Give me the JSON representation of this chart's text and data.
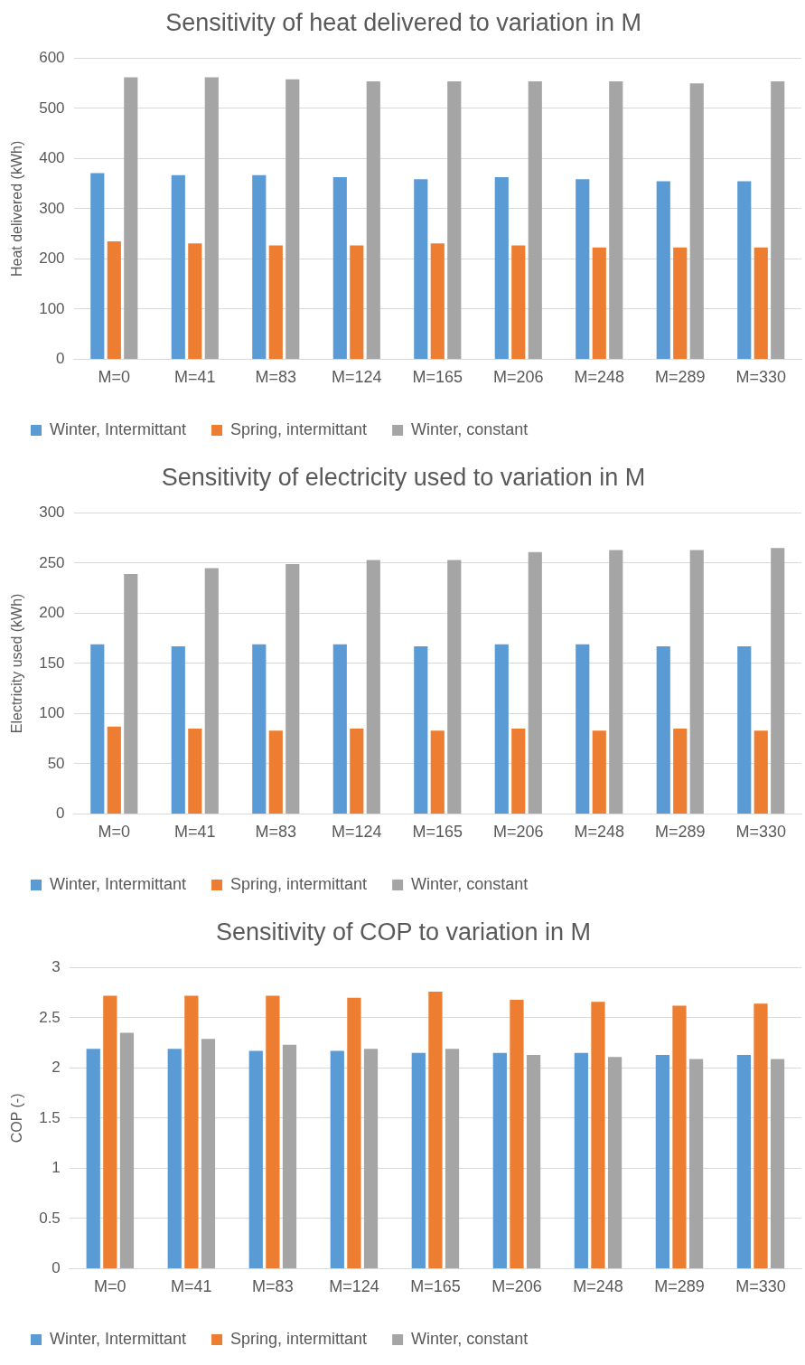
{
  "chart_data": [
    {
      "type": "bar",
      "title": "Sensitivity of heat delivered to variation in M",
      "ylabel": "Heat delivered (kWh)",
      "categories": [
        "M=0",
        "M=41",
        "M=83",
        "M=124",
        "M=165",
        "M=206",
        "M=248",
        "M=289",
        "M=330"
      ],
      "series": [
        {
          "name": "Winter, Intermittant",
          "color": "#5b9bd5",
          "values": [
            371,
            367,
            367,
            363,
            359,
            363,
            359,
            355,
            355
          ]
        },
        {
          "name": "Spring, intermittant",
          "color": "#ed7d31",
          "values": [
            235,
            231,
            227,
            227,
            231,
            227,
            223,
            223,
            223
          ]
        },
        {
          "name": "Winter, constant",
          "color": "#a5a5a5",
          "values": [
            562,
            562,
            558,
            554,
            554,
            554,
            554,
            550,
            554
          ]
        }
      ],
      "ylim": [
        0,
        600
      ],
      "yticks": [
        0,
        100,
        200,
        300,
        400,
        500,
        600
      ],
      "grid": "y",
      "legend": "bottom"
    },
    {
      "type": "bar",
      "title": "Sensitivity of electricity used to variation in M",
      "ylabel": "Electricity used (kWh)",
      "categories": [
        "M=0",
        "M=41",
        "M=83",
        "M=124",
        "M=165",
        "M=206",
        "M=248",
        "M=289",
        "M=330"
      ],
      "series": [
        {
          "name": "Winter, Intermittant",
          "color": "#5b9bd5",
          "values": [
            169,
            167,
            169,
            169,
            167,
            169,
            169,
            167,
            167
          ]
        },
        {
          "name": "Spring, intermittant",
          "color": "#ed7d31",
          "values": [
            87,
            85,
            83,
            85,
            83,
            85,
            83,
            85,
            83
          ]
        },
        {
          "name": "Winter, constant",
          "color": "#a5a5a5",
          "values": [
            239,
            245,
            249,
            253,
            253,
            261,
            263,
            263,
            265
          ]
        }
      ],
      "ylim": [
        0,
        300
      ],
      "yticks": [
        0,
        50,
        100,
        150,
        200,
        250,
        300
      ],
      "grid": "y",
      "legend": "bottom"
    },
    {
      "type": "bar",
      "title": "Sensitivity of COP to variation in M",
      "ylabel": "COP (-)",
      "categories": [
        "M=0",
        "M=41",
        "M=83",
        "M=124",
        "M=165",
        "M=206",
        "M=248",
        "M=289",
        "M=330"
      ],
      "series": [
        {
          "name": "Winter, Intermittant",
          "color": "#5b9bd5",
          "values": [
            2.19,
            2.19,
            2.17,
            2.17,
            2.15,
            2.15,
            2.15,
            2.13,
            2.13
          ]
        },
        {
          "name": "Spring, intermittant",
          "color": "#ed7d31",
          "values": [
            2.72,
            2.72,
            2.72,
            2.7,
            2.76,
            2.68,
            2.66,
            2.62,
            2.64
          ]
        },
        {
          "name": "Winter, constant",
          "color": "#a5a5a5",
          "values": [
            2.35,
            2.29,
            2.23,
            2.19,
            2.19,
            2.13,
            2.11,
            2.09,
            2.09
          ]
        }
      ],
      "ylim": [
        0,
        3
      ],
      "yticks": [
        0,
        0.5,
        1,
        1.5,
        2,
        2.5,
        3
      ],
      "grid": "y",
      "legend": "bottom"
    }
  ]
}
